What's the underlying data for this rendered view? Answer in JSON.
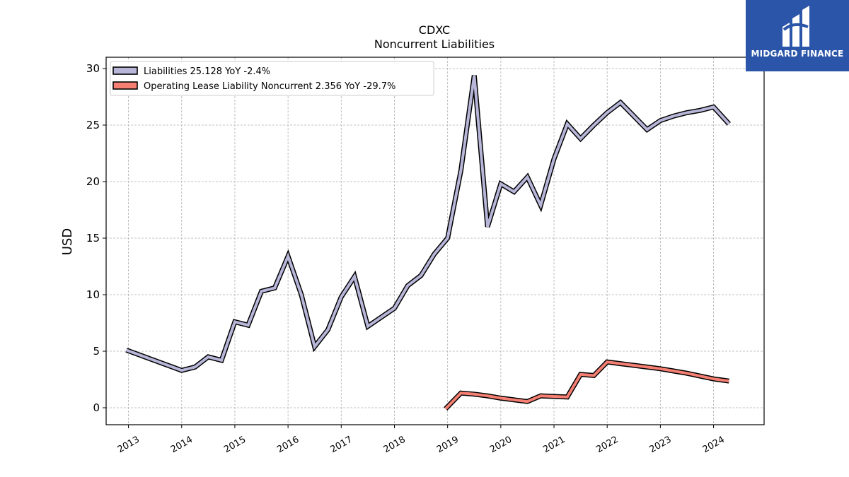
{
  "chart_data": {
    "type": "line",
    "title": "CDXC",
    "subtitle": "Noncurrent  Liabilities",
    "xlabel": "",
    "ylabel": "USD",
    "ylim": [
      -1.5,
      31
    ],
    "yticks": [
      0,
      5,
      10,
      15,
      20,
      25,
      30
    ],
    "xlim": [
      2012.58,
      2024.95
    ],
    "xticks": [
      "2013",
      "2014",
      "2015",
      "2016",
      "2017",
      "2018",
      "2019",
      "2020",
      "2021",
      "2022",
      "2023",
      "2024"
    ],
    "grid": true,
    "legend_position": "top-left",
    "series": [
      {
        "name": "Liabilities  25.128 YoY -2.4%",
        "color": "#b8b6d8",
        "x": [
          2012.96,
          2014.0,
          2014.25,
          2014.5,
          2014.75,
          2015.0,
          2015.25,
          2015.5,
          2015.75,
          2016.0,
          2016.25,
          2016.5,
          2016.75,
          2017.0,
          2017.25,
          2017.5,
          2017.75,
          2018.0,
          2018.25,
          2018.5,
          2018.75,
          2019.0,
          2019.25,
          2019.5,
          2019.75,
          2020.0,
          2020.25,
          2020.5,
          2020.75,
          2021.0,
          2021.25,
          2021.5,
          2021.75,
          2022.0,
          2022.25,
          2022.5,
          2022.75,
          2023.0,
          2023.25,
          2023.5,
          2023.75,
          2024.0,
          2024.29
        ],
        "values": [
          5.1,
          3.3,
          3.6,
          4.5,
          4.2,
          7.6,
          7.3,
          10.3,
          10.6,
          13.4,
          10.0,
          5.4,
          6.9,
          9.8,
          11.6,
          7.2,
          8.0,
          8.8,
          10.8,
          11.7,
          13.6,
          15.0,
          21.0,
          29.4,
          16.0,
          19.8,
          19.1,
          20.4,
          17.9,
          22.0,
          25.1,
          23.8,
          25.0,
          26.1,
          27.0,
          25.8,
          24.6,
          25.4,
          25.8,
          26.1,
          26.3,
          26.6,
          25.1
        ]
      },
      {
        "name": "Operating Lease Liability Noncurrent  2.356 YoY -29.7%",
        "color": "#f47f72",
        "x": [
          2018.96,
          2019.25,
          2019.5,
          2019.75,
          2020.0,
          2020.25,
          2020.5,
          2020.75,
          2021.0,
          2021.25,
          2021.5,
          2021.75,
          2022.0,
          2022.25,
          2022.5,
          2022.75,
          2023.0,
          2023.25,
          2023.5,
          2023.75,
          2024.0,
          2024.29
        ],
        "values": [
          -0.1,
          1.3,
          1.2,
          1.05,
          0.85,
          0.7,
          0.55,
          1.05,
          1.0,
          0.95,
          2.95,
          2.85,
          4.05,
          3.9,
          3.75,
          3.6,
          3.45,
          3.25,
          3.05,
          2.8,
          2.55,
          2.36
        ]
      }
    ]
  },
  "logo": {
    "text": "MIDGARD FINANCE",
    "color": "#2b55a8"
  }
}
